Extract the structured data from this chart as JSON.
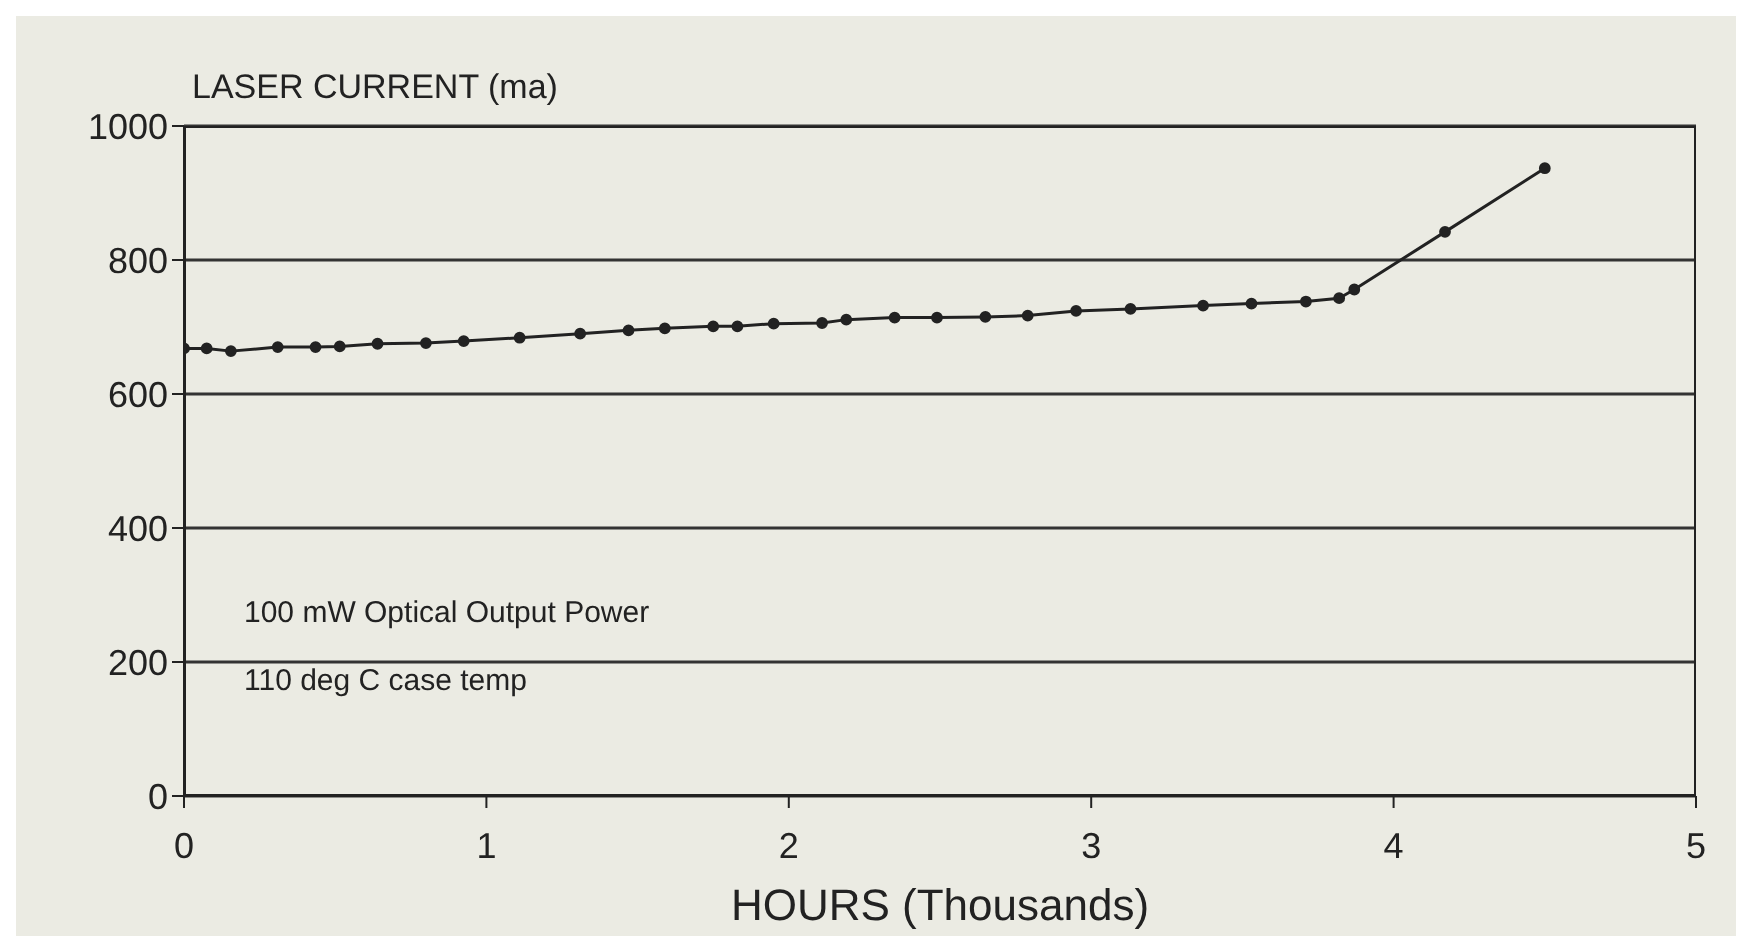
{
  "chart_data": {
    "type": "line",
    "ylabel": "LASER CURRENT (ma)",
    "xlabel": "HOURS (Thousands)",
    "annotations": [
      "100 mW Optical Output Power",
      "110 deg C case temp"
    ],
    "x": [
      0.0,
      0.075,
      0.155,
      0.31,
      0.435,
      0.515,
      0.64,
      0.8,
      0.925,
      1.11,
      1.31,
      1.47,
      1.59,
      1.75,
      1.83,
      1.95,
      2.11,
      2.19,
      2.35,
      2.49,
      2.65,
      2.79,
      2.95,
      3.13,
      3.37,
      3.53,
      3.71,
      3.82,
      3.87,
      4.17,
      4.5
    ],
    "series": [
      {
        "color": "#222222",
        "values": [
          668,
          668,
          664,
          670,
          670,
          671,
          675,
          676,
          679,
          684,
          690,
          695,
          698,
          701,
          701,
          705,
          706,
          711,
          714,
          714,
          715,
          717,
          724,
          727,
          732,
          735,
          738,
          743,
          756,
          842,
          937
        ]
      }
    ],
    "xlim": [
      0,
      5
    ],
    "xticks": [
      0,
      1,
      2,
      3,
      4,
      5
    ],
    "ylim": [
      0,
      1000
    ],
    "yticks": [
      0,
      200,
      400,
      600,
      800,
      1000
    ],
    "grid": "y",
    "marker": "circle",
    "line_style": "solid"
  }
}
